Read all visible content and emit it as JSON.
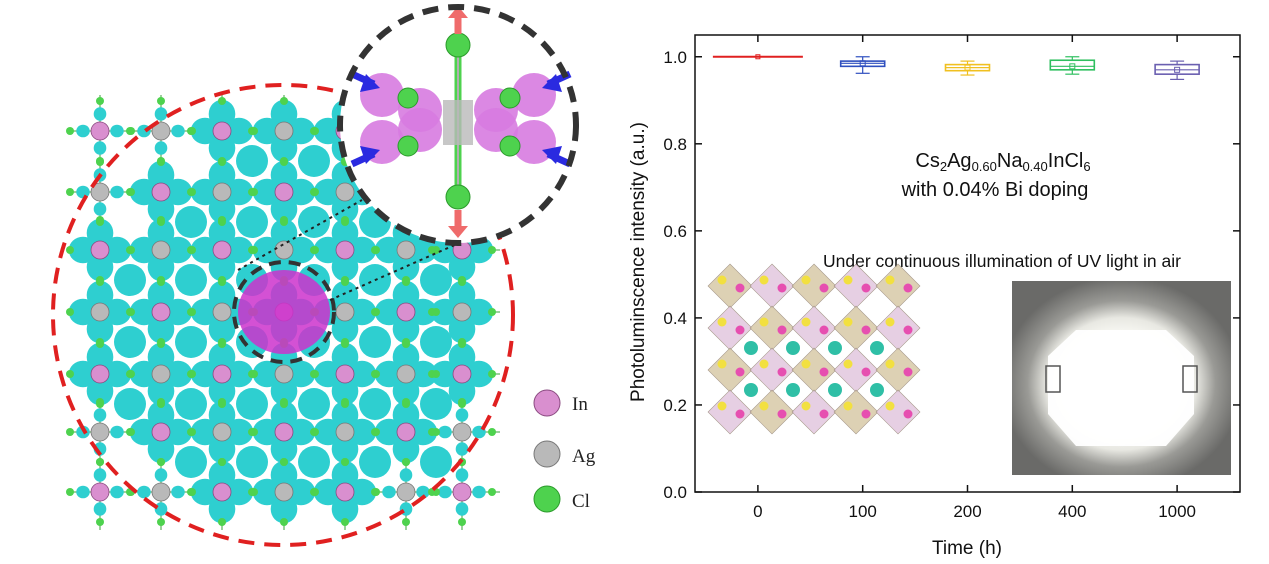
{
  "legend": {
    "items": [
      {
        "label": "In",
        "color": "#d98fcf"
      },
      {
        "label": "Ag",
        "color": "#b9b9b9"
      },
      {
        "label": "Cl",
        "color": "#4ed24e"
      }
    ]
  },
  "colors": {
    "isosurface_cyan": "#2ecfd0",
    "isosurface_magenta": "#cc33cc",
    "dashed_circle_red": "#e02020",
    "dashed_circle_dark": "#333333",
    "arrow_red": "#ef6b6b",
    "arrow_blue": "#2a2ae0"
  },
  "annotation": {
    "formula_parts": [
      "Cs",
      "2",
      "Ag",
      "0.60",
      "Na",
      "0.40",
      "InCl",
      "6"
    ],
    "doping": "with 0.04% Bi doping",
    "illumination": "Under continuous illumination of UV light in air"
  },
  "chart_data": {
    "type": "box",
    "xlabel": "Time (h)",
    "ylabel": "Photoluminscence intensity (a.u.)",
    "ylim": [
      0.0,
      1.05
    ],
    "yticks": [
      "0.0",
      "0.2",
      "0.4",
      "0.6",
      "0.8",
      "1.0"
    ],
    "categories": [
      "0",
      "100",
      "200",
      "400",
      "1000"
    ],
    "boxes": [
      {
        "category": "0",
        "color": "#e02020",
        "q1": 1.0,
        "median": 1.0,
        "q3": 1.0,
        "min": 0.999,
        "max": 1.001
      },
      {
        "category": "100",
        "color": "#2f4fbf",
        "q1": 0.978,
        "median": 0.985,
        "q3": 0.99,
        "min": 0.962,
        "max": 1.0
      },
      {
        "category": "200",
        "color": "#f0c020",
        "q1": 0.968,
        "median": 0.975,
        "q3": 0.982,
        "min": 0.958,
        "max": 0.99
      },
      {
        "category": "400",
        "color": "#2fbf5f",
        "q1": 0.97,
        "median": 0.978,
        "q3": 0.992,
        "min": 0.96,
        "max": 1.0
      },
      {
        "category": "1000",
        "color": "#6a5fb0",
        "q1": 0.96,
        "median": 0.97,
        "q3": 0.982,
        "min": 0.948,
        "max": 0.99
      }
    ]
  }
}
